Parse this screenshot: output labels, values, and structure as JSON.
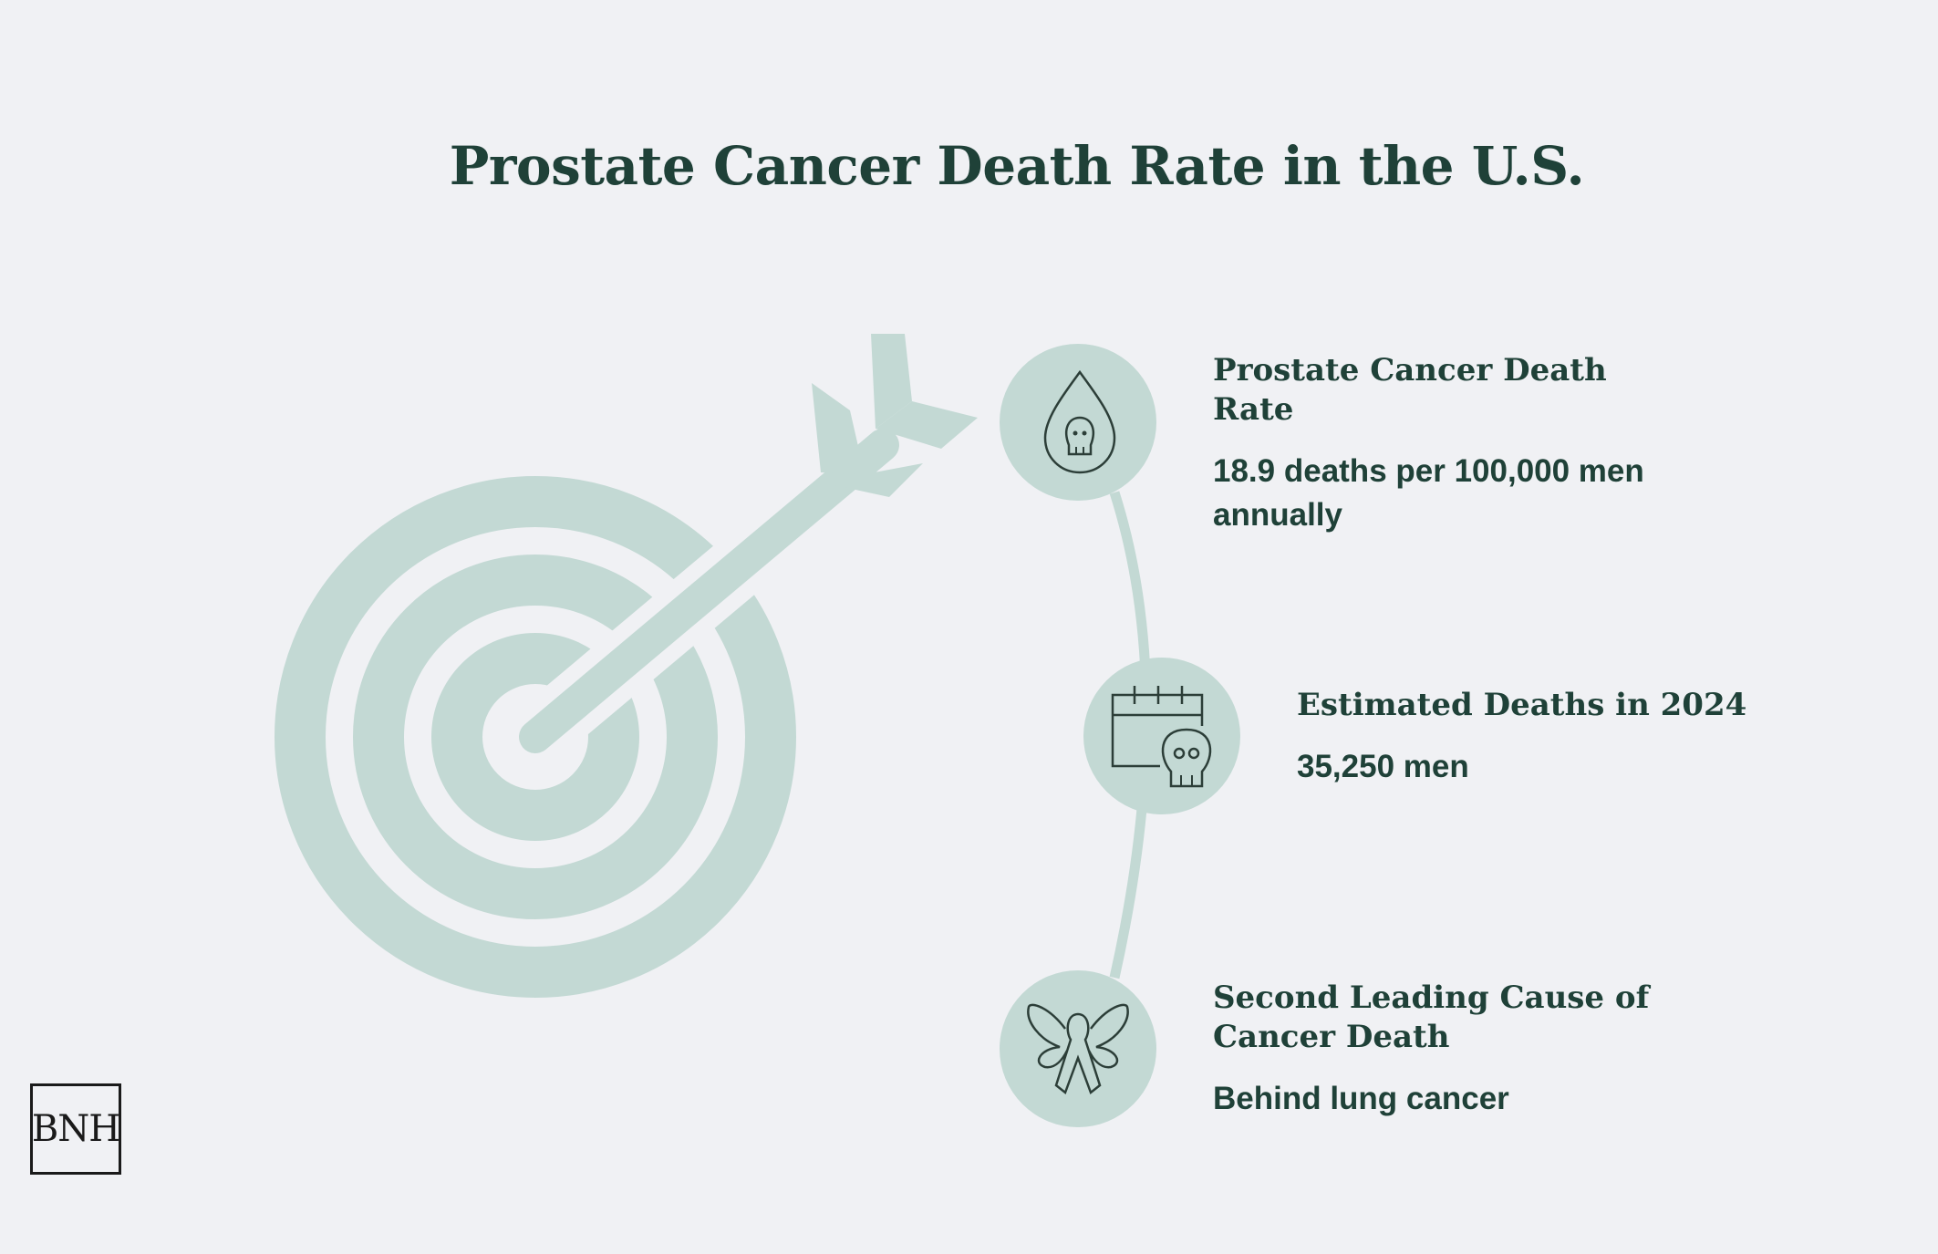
{
  "title": "Prostate Cancer Death Rate in the U.S.",
  "items": [
    {
      "icon": "drop-skull-icon",
      "heading": "Prostate Cancer Death Rate",
      "value": "18.9 deaths per 100,000 men annually"
    },
    {
      "icon": "calendar-skull-icon",
      "heading": "Estimated Deaths in 2024",
      "value": "35,250 men"
    },
    {
      "icon": "ribbon-wings-icon",
      "heading": "Second Leading Cause of Cancer Death",
      "value": "Behind lung cancer"
    }
  ],
  "logo": {
    "text": "BNH"
  },
  "colors": {
    "background": "#f0f1f4",
    "accent": "#c3d9d4",
    "text": "#1f4138"
  }
}
